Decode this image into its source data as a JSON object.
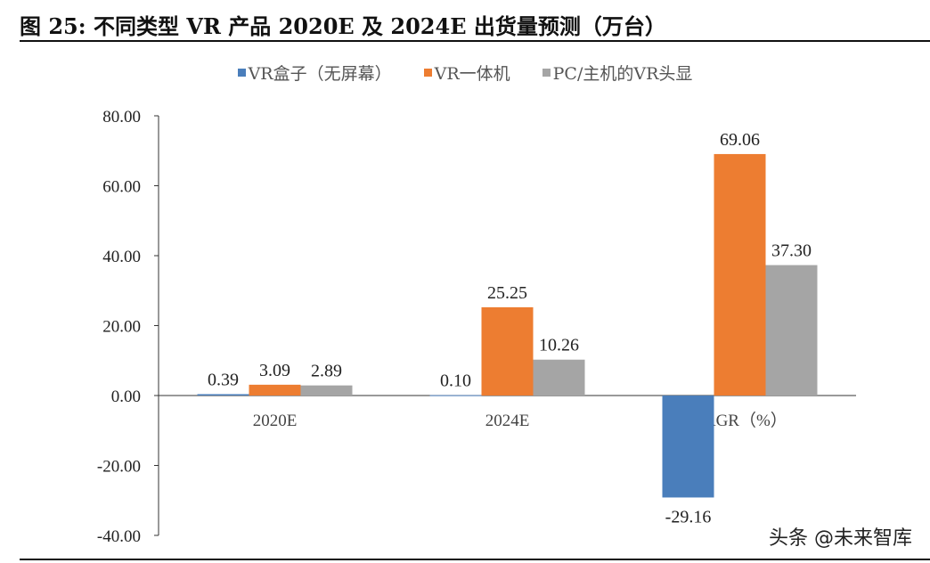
{
  "title": "图 25: 不同类型 VR 产品 2020E 及 2024E 出货量预测（万台）",
  "watermark": "头条 @未来智库",
  "chart_data": {
    "type": "bar",
    "categories": [
      "2020E",
      "2024E",
      "CAGR（%）"
    ],
    "series": [
      {
        "name": "VR盒子（无屏幕）",
        "color": "#4a7ebb",
        "values": [
          0.39,
          0.1,
          -29.16
        ],
        "labels": [
          "0.39",
          "0.10",
          "-29.16"
        ]
      },
      {
        "name": "VR一体机",
        "color": "#ed7d31",
        "values": [
          3.09,
          25.25,
          69.06
        ],
        "labels": [
          "3.09",
          "25.25",
          "69.06"
        ]
      },
      {
        "name": "PC/主机的VR头显",
        "color": "#a5a5a5",
        "values": [
          2.89,
          10.26,
          37.3
        ],
        "labels": [
          "2.89",
          "10.26",
          "37.30"
        ]
      }
    ],
    "ylim": [
      -40,
      80
    ],
    "yticks": [
      "80.00",
      "60.00",
      "40.00",
      "20.00",
      "0.00",
      "-20.00",
      "-40.00"
    ],
    "ytick_values": [
      80,
      60,
      40,
      20,
      0,
      -20,
      -40
    ],
    "legend": "top",
    "grid": false
  }
}
